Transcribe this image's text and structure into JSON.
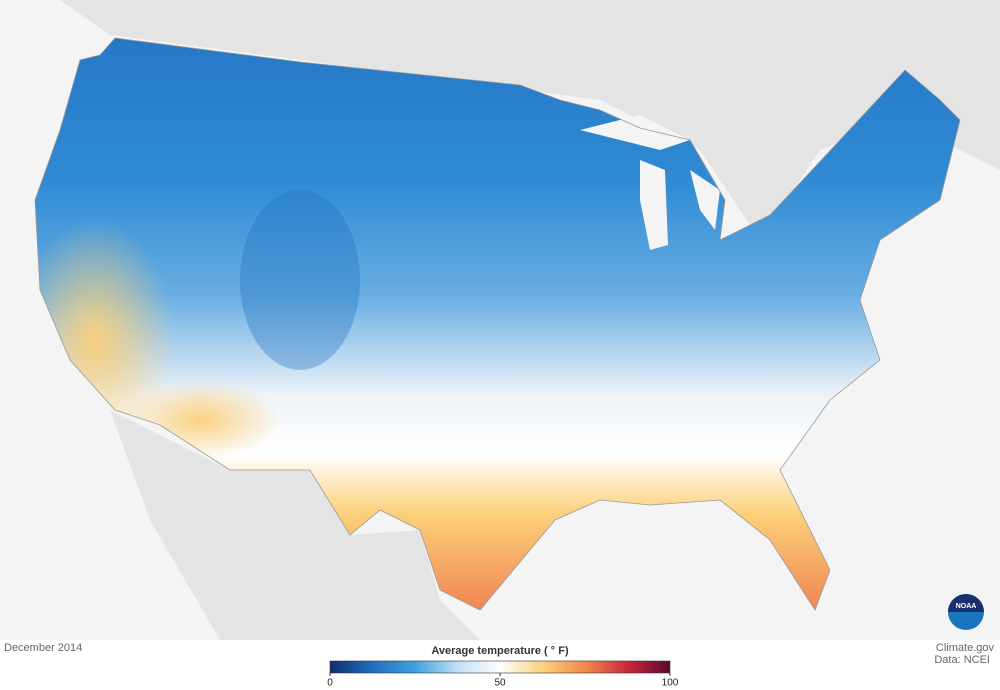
{
  "caption": "December 2014",
  "legend": {
    "title": "Average temperature ( ° F)",
    "lim": [
      0,
      100
    ],
    "ticks": [
      0,
      50,
      100
    ],
    "colors": [
      "#0b2f6b",
      "#1f6fbf",
      "#3fa0e0",
      "#bfe0f4",
      "#ffffff",
      "#fcd27a",
      "#f08a4b",
      "#c9283a",
      "#5c0a2c"
    ]
  },
  "credits": {
    "site": "Climate.gov",
    "source": "Data: NCEI"
  },
  "logo": "NOAA"
}
